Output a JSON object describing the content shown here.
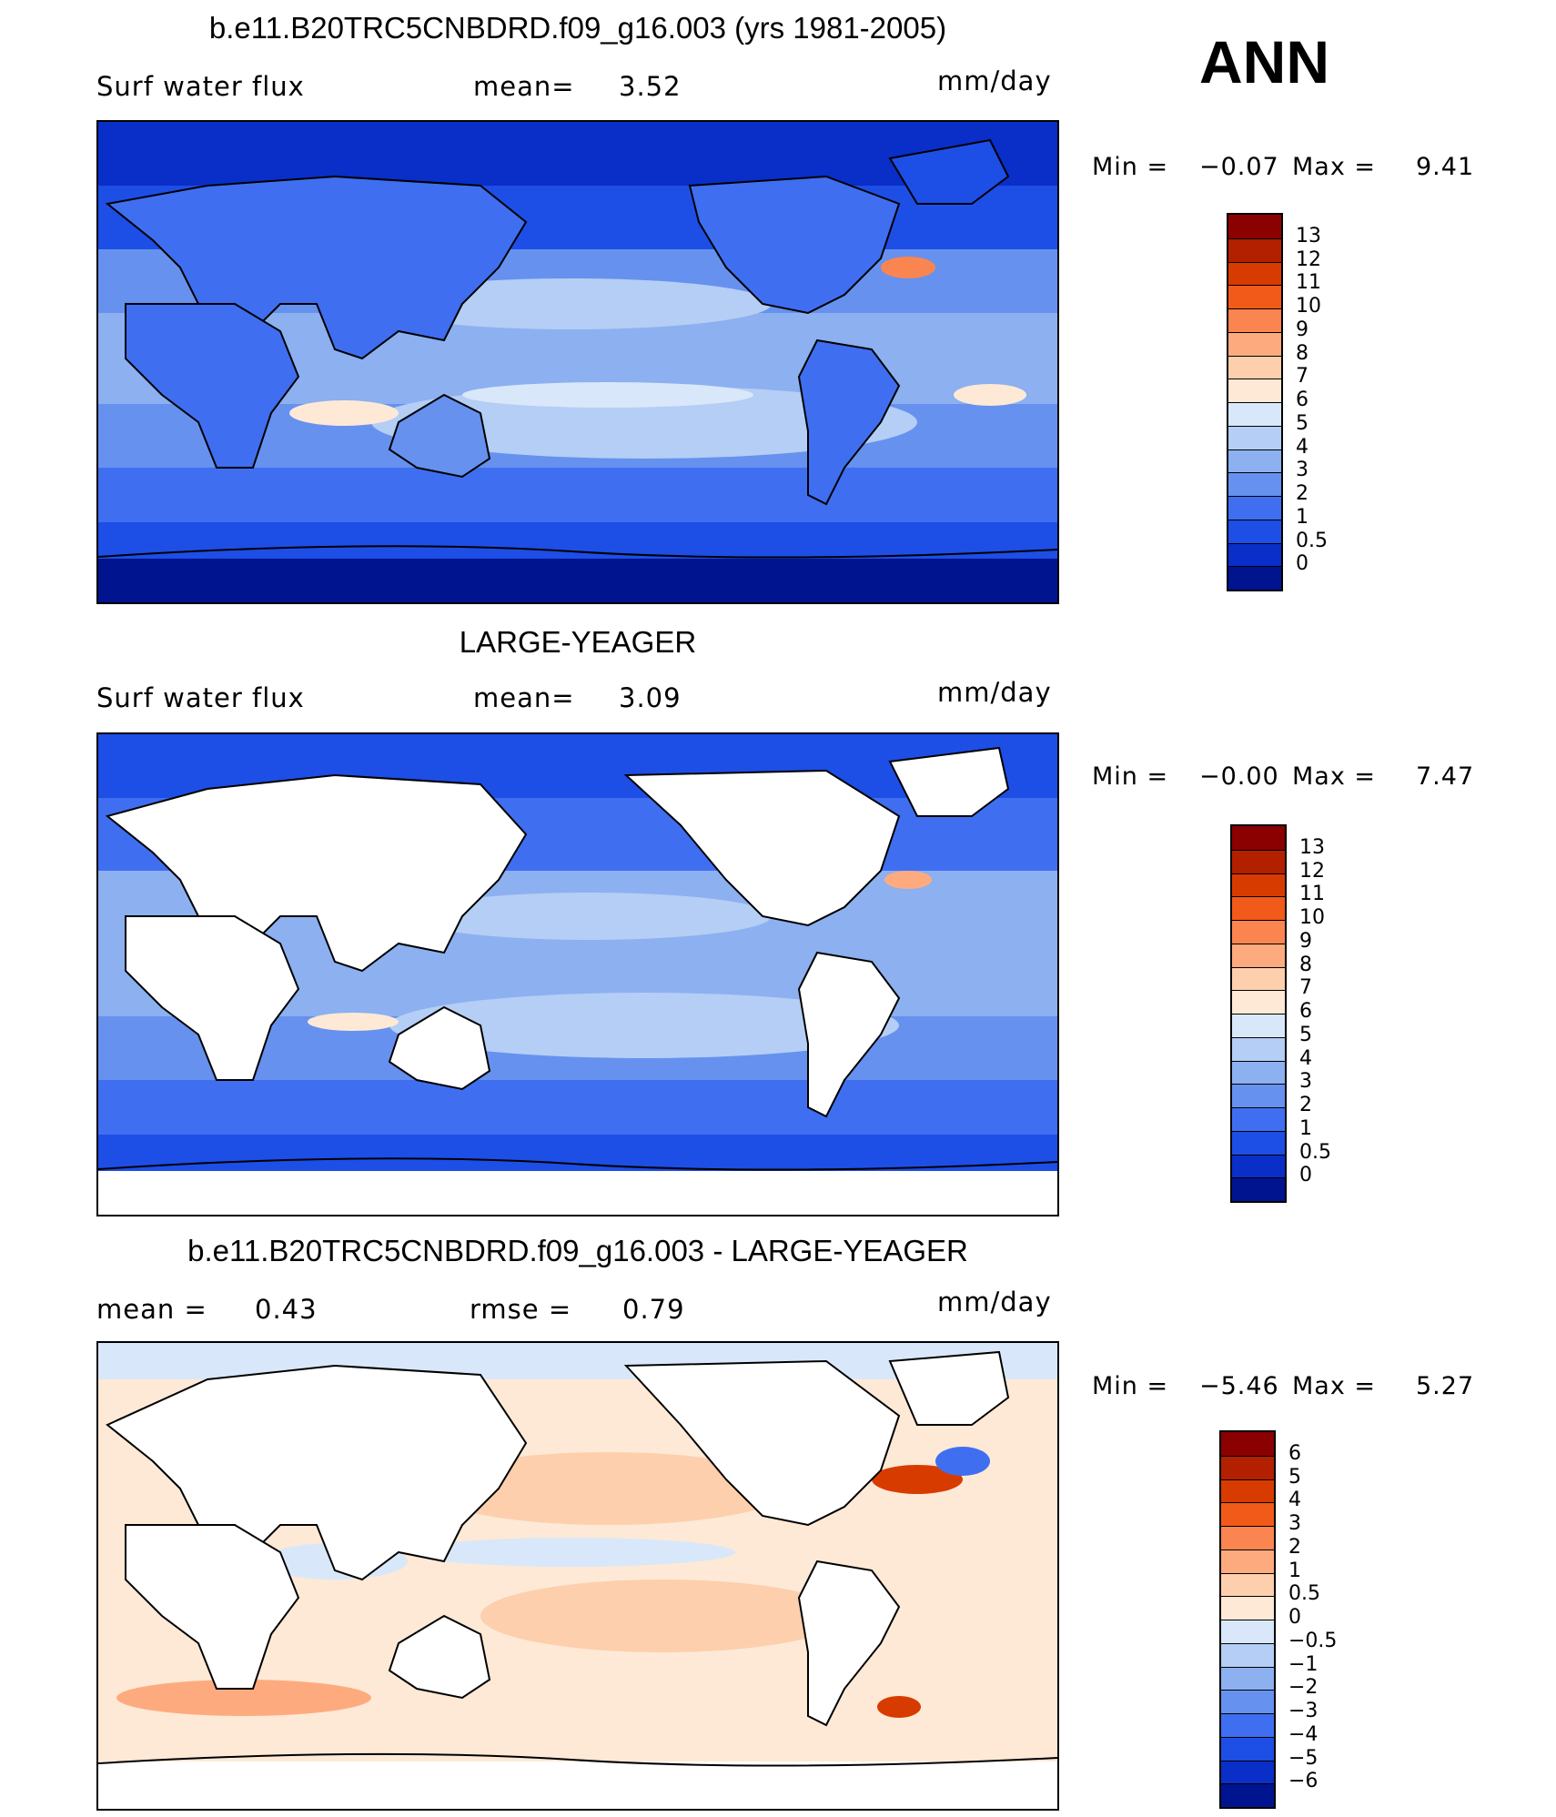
{
  "season": "ANN",
  "units": "mm/day",
  "panels": [
    {
      "id": "model",
      "title": "b.e11.B20TRC5CNBDRD.f09_g16.003 (yrs 1981-2005)",
      "left_label": "Surf water flux",
      "center_label": "mean=",
      "center_value": "3.52",
      "units": "mm/day",
      "min_label": "Min =",
      "min_value": "−0.07",
      "max_label": "Max =",
      "max_value": "9.41",
      "ocean_only": false
    },
    {
      "id": "obs",
      "title": "LARGE-YEAGER",
      "left_label": "Surf water flux",
      "center_label": "mean=",
      "center_value": "3.09",
      "units": "mm/day",
      "min_label": "Min =",
      "min_value": "−0.00",
      "max_label": "Max =",
      "max_value": "7.47",
      "ocean_only": true
    },
    {
      "id": "diff",
      "title": "b.e11.B20TRC5CNBDRD.f09_g16.003 - LARGE-YEAGER",
      "left_label": "mean =",
      "left_value": "0.43",
      "center_label": "rmse =",
      "center_value": "0.79",
      "units": "mm/day",
      "min_label": "Min =",
      "min_value": "−5.46",
      "max_label": "Max =",
      "max_value": "5.27",
      "ocean_only": true
    }
  ],
  "colorbars": {
    "field": {
      "levels": [
        "13",
        "12",
        "11",
        "10",
        "9",
        "8",
        "7",
        "6",
        "5",
        "4",
        "3",
        "2",
        "1",
        "0.5",
        "0"
      ],
      "colors": [
        "#8b0000",
        "#b22000",
        "#d83b00",
        "#f25a1a",
        "#fb8550",
        "#fdab7e",
        "#fdcfad",
        "#fde9d6",
        "#d8e8fa",
        "#b4cef5",
        "#8cb0f0",
        "#6691ee",
        "#3f6ff0",
        "#1d4ee6",
        "#0a2ec8",
        "#00148f"
      ]
    },
    "diff": {
      "levels": [
        "6",
        "5",
        "4",
        "3",
        "2",
        "1",
        "0.5",
        "0",
        "−0.5",
        "−1",
        "−2",
        "−3",
        "−4",
        "−5",
        "−6"
      ],
      "colors": [
        "#8b0000",
        "#b22000",
        "#d83b00",
        "#f25a1a",
        "#fb8550",
        "#fdab7e",
        "#fdcfad",
        "#fde9d6",
        "#d8e8fa",
        "#b4cef5",
        "#8cb0f0",
        "#6691ee",
        "#3f6ff0",
        "#1d4ee6",
        "#0a2ec8",
        "#00148f"
      ]
    }
  },
  "map_colors": {
    "land": "#ffffff",
    "coast": "#000000"
  }
}
